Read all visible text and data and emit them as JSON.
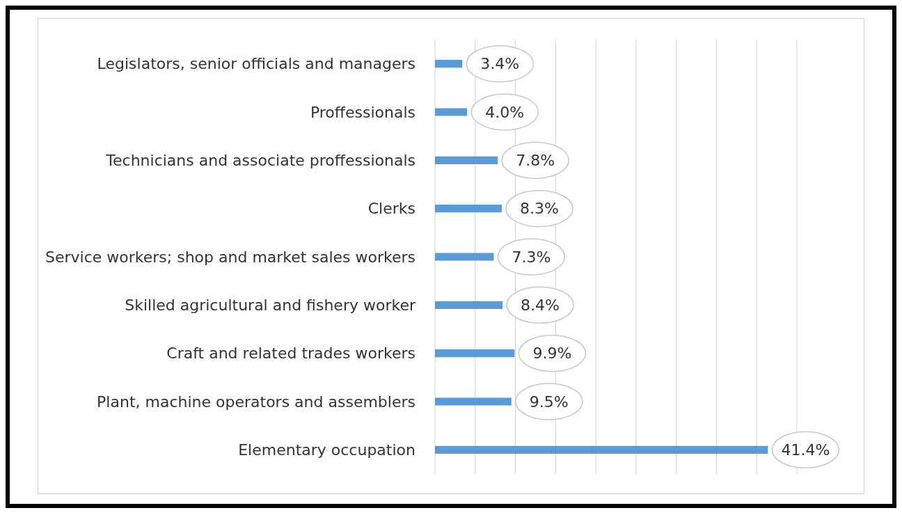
{
  "chart_data": {
    "type": "bar",
    "orientation": "horizontal",
    "categories": [
      "Legislators, senior officials and managers",
      "Proffessionals",
      "Technicians and associate proffessionals",
      "Clerks",
      "Service workers; shop and market sales workers",
      "Skilled agricultural and fishery worker",
      "Craft and related trades workers",
      "Plant, machine operators and assemblers",
      "Elementary occupation"
    ],
    "values": [
      3.4,
      4.0,
      7.8,
      8.3,
      7.3,
      8.4,
      9.9,
      9.5,
      41.4
    ],
    "value_labels": [
      "3.4%",
      "4.0%",
      "7.8%",
      "8.3%",
      "7.3%",
      "8.4%",
      "9.9%",
      "9.5%",
      "41.4%"
    ],
    "color": "#5b9bd5",
    "tick_labels": "y",
    "grid": "x",
    "legend": false
  }
}
